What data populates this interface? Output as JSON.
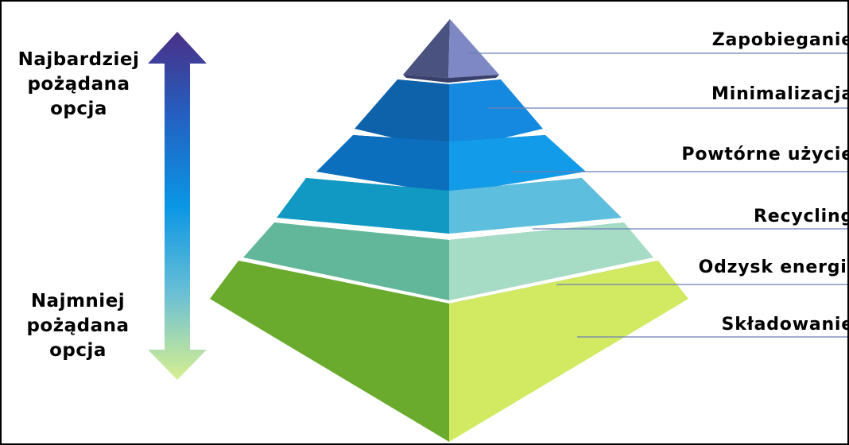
{
  "arrow": {
    "top_label": [
      "Najbardziej",
      "pożądana",
      "opcja"
    ],
    "bottom_label": [
      "Najmniej",
      "pożądana",
      "opcja"
    ],
    "gradient": [
      "#4b2f86",
      "#2262c3",
      "#0a96e4",
      "#69bfd6",
      "#d8ef90"
    ]
  },
  "tiers": [
    {
      "label": "Zapobieganie",
      "left": "#4a5380",
      "right": "#7e88c4",
      "edge": "#39406b"
    },
    {
      "label": "Minimalizacja",
      "left": "#0d62aa",
      "right": "#1588e0",
      "edge": "#0a4f8c"
    },
    {
      "label": "Powtórne użycie",
      "left": "#0b6fbe",
      "right": "#129be8",
      "edge": "#0a5a9c"
    },
    {
      "label": "Recycling",
      "left": "#1199c4",
      "right": "#5dbede",
      "edge": "#0c7aa0"
    },
    {
      "label": "Odzysk energii",
      "left": "#62b79a",
      "right": "#a6dbc6",
      "edge": "#4c9a80"
    },
    {
      "label": "Składowanie",
      "left": "#6aab2e",
      "right": "#d1ea62",
      "edge": "#4f8a1c"
    }
  ],
  "leader_line_color": "#6a7fb8"
}
